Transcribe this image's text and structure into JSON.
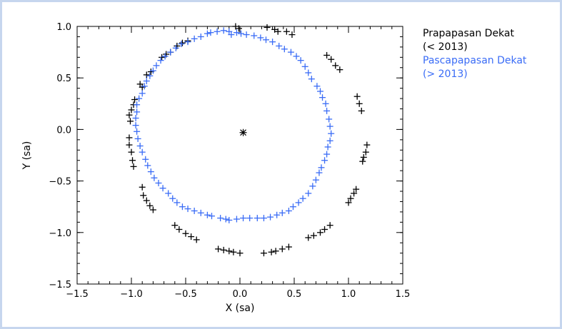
{
  "chart_data": {
    "type": "scatter",
    "title": "",
    "xlabel": "X (sa)",
    "ylabel": "Y (sa)",
    "xlim": [
      -1.5,
      1.5
    ],
    "ylim": [
      -1.5,
      1.0
    ],
    "x_ticks": [
      "−1.5",
      "−1.0",
      "−0.5",
      "0.0",
      "0.5",
      "1.0",
      "1.5"
    ],
    "y_ticks": [
      "1.0",
      "0.5",
      "0.0",
      "−0.5",
      "−1.0",
      "−1.5"
    ],
    "grid": false,
    "legend_position": "outside-top-right",
    "center_star": {
      "x": 0.03,
      "y": -0.03
    },
    "series": [
      {
        "name": "Prapapasan Dekat (< 2013)",
        "legend_lines": [
          "Prapapasan Dekat",
          "(< 2013)"
        ],
        "color": "#000000",
        "marker": "+",
        "points": [
          [
            -0.04,
            1.0
          ],
          [
            -0.01,
            0.98
          ],
          [
            0.25,
            0.99
          ],
          [
            0.32,
            0.97
          ],
          [
            0.35,
            0.95
          ],
          [
            0.43,
            0.95
          ],
          [
            0.48,
            0.92
          ],
          [
            0.8,
            0.72
          ],
          [
            0.84,
            0.68
          ],
          [
            0.88,
            0.62
          ],
          [
            0.92,
            0.58
          ],
          [
            1.08,
            0.32
          ],
          [
            1.1,
            0.25
          ],
          [
            1.12,
            0.18
          ],
          [
            1.17,
            -0.15
          ],
          [
            1.16,
            -0.22
          ],
          [
            1.14,
            -0.27
          ],
          [
            1.13,
            -0.31
          ],
          [
            1.07,
            -0.58
          ],
          [
            1.05,
            -0.62
          ],
          [
            1.02,
            -0.67
          ],
          [
            1.0,
            -0.71
          ],
          [
            0.83,
            -0.93
          ],
          [
            0.78,
            -0.97
          ],
          [
            0.74,
            -1.0
          ],
          [
            0.68,
            -1.03
          ],
          [
            0.63,
            -1.05
          ],
          [
            0.45,
            -1.14
          ],
          [
            0.39,
            -1.16
          ],
          [
            0.33,
            -1.18
          ],
          [
            0.29,
            -1.19
          ],
          [
            0.22,
            -1.2
          ],
          [
            0.0,
            -1.2
          ],
          [
            -0.06,
            -1.19
          ],
          [
            -0.1,
            -1.18
          ],
          [
            -0.15,
            -1.17
          ],
          [
            -0.2,
            -1.16
          ],
          [
            -0.4,
            -1.07
          ],
          [
            -0.45,
            -1.04
          ],
          [
            -0.5,
            -1.01
          ],
          [
            -0.56,
            -0.97
          ],
          [
            -0.6,
            -0.93
          ],
          [
            -0.8,
            -0.78
          ],
          [
            -0.83,
            -0.74
          ],
          [
            -0.86,
            -0.69
          ],
          [
            -0.89,
            -0.64
          ],
          [
            -0.9,
            -0.56
          ],
          [
            -0.98,
            -0.36
          ],
          [
            -0.99,
            -0.3
          ],
          [
            -1.0,
            -0.22
          ],
          [
            -1.02,
            -0.15
          ],
          [
            -1.02,
            -0.08
          ],
          [
            -1.01,
            0.08
          ],
          [
            -1.02,
            0.14
          ],
          [
            -1.0,
            0.19
          ],
          [
            -0.98,
            0.24
          ],
          [
            -0.97,
            0.29
          ],
          [
            -0.92,
            0.44
          ],
          [
            -0.9,
            0.41
          ],
          [
            -0.86,
            0.53
          ],
          [
            -0.82,
            0.56
          ],
          [
            -0.72,
            0.7
          ],
          [
            -0.68,
            0.73
          ],
          [
            -0.64,
            0.75
          ],
          [
            -0.58,
            0.81
          ],
          [
            -0.53,
            0.84
          ],
          [
            -0.48,
            0.86
          ]
        ]
      },
      {
        "name": "Pascapapasan Dekat (> 2013)",
        "legend_lines": [
          "Pascapapasan Dekat",
          "(> 2013)"
        ],
        "color": "#3a6cf6",
        "marker": "+",
        "points": [
          [
            -0.3,
            0.93
          ],
          [
            -0.27,
            0.94
          ],
          [
            -0.21,
            0.95
          ],
          [
            -0.15,
            0.96
          ],
          [
            -0.1,
            0.95
          ],
          [
            -0.08,
            0.92
          ],
          [
            -0.03,
            0.94
          ],
          [
            0.01,
            0.93
          ],
          [
            0.06,
            0.92
          ],
          [
            0.13,
            0.91
          ],
          [
            0.19,
            0.89
          ],
          [
            0.24,
            0.87
          ],
          [
            0.3,
            0.85
          ],
          [
            0.36,
            0.81
          ],
          [
            0.41,
            0.78
          ],
          [
            0.47,
            0.75
          ],
          [
            0.52,
            0.71
          ],
          [
            0.56,
            0.67
          ],
          [
            0.6,
            0.61
          ],
          [
            0.63,
            0.55
          ],
          [
            0.66,
            0.49
          ],
          [
            0.71,
            0.42
          ],
          [
            0.74,
            0.37
          ],
          [
            0.76,
            0.31
          ],
          [
            0.79,
            0.25
          ],
          [
            0.8,
            0.18
          ],
          [
            0.82,
            0.1
          ],
          [
            0.83,
            0.03
          ],
          [
            0.84,
            -0.04
          ],
          [
            0.83,
            -0.11
          ],
          [
            0.81,
            -0.17
          ],
          [
            0.8,
            -0.24
          ],
          [
            0.78,
            -0.3
          ],
          [
            0.75,
            -0.37
          ],
          [
            0.73,
            -0.42
          ],
          [
            0.7,
            -0.49
          ],
          [
            0.67,
            -0.55
          ],
          [
            0.63,
            -0.62
          ],
          [
            0.58,
            -0.67
          ],
          [
            0.54,
            -0.71
          ],
          [
            0.49,
            -0.75
          ],
          [
            0.45,
            -0.79
          ],
          [
            0.39,
            -0.81
          ],
          [
            0.34,
            -0.83
          ],
          [
            0.28,
            -0.85
          ],
          [
            0.22,
            -0.86
          ],
          [
            0.16,
            -0.86
          ],
          [
            0.09,
            -0.86
          ],
          [
            0.03,
            -0.86
          ],
          [
            -0.03,
            -0.87
          ],
          [
            -0.1,
            -0.88
          ],
          [
            -0.13,
            -0.87
          ],
          [
            -0.18,
            -0.86
          ],
          [
            -0.26,
            -0.84
          ],
          [
            -0.3,
            -0.83
          ],
          [
            -0.36,
            -0.81
          ],
          [
            -0.42,
            -0.79
          ],
          [
            -0.48,
            -0.77
          ],
          [
            -0.53,
            -0.75
          ],
          [
            -0.58,
            -0.71
          ],
          [
            -0.62,
            -0.67
          ],
          [
            -0.66,
            -0.62
          ],
          [
            -0.71,
            -0.57
          ],
          [
            -0.75,
            -0.52
          ],
          [
            -0.79,
            -0.47
          ],
          [
            -0.82,
            -0.41
          ],
          [
            -0.85,
            -0.35
          ],
          [
            -0.87,
            -0.29
          ],
          [
            -0.9,
            -0.22
          ],
          [
            -0.92,
            -0.16
          ],
          [
            -0.94,
            -0.09
          ],
          [
            -0.95,
            -0.02
          ],
          [
            -0.96,
            0.04
          ],
          [
            -0.96,
            0.11
          ],
          [
            -0.95,
            0.17
          ],
          [
            -0.95,
            0.24
          ],
          [
            -0.93,
            0.3
          ],
          [
            -0.9,
            0.35
          ],
          [
            -0.88,
            0.42
          ],
          [
            -0.86,
            0.47
          ],
          [
            -0.83,
            0.52
          ],
          [
            -0.8,
            0.57
          ],
          [
            -0.77,
            0.62
          ],
          [
            -0.73,
            0.67
          ],
          [
            -0.69,
            0.71
          ],
          [
            -0.64,
            0.75
          ],
          [
            -0.59,
            0.79
          ],
          [
            -0.54,
            0.83
          ],
          [
            -0.48,
            0.85
          ],
          [
            -0.42,
            0.88
          ],
          [
            -0.36,
            0.9
          ]
        ]
      }
    ]
  }
}
